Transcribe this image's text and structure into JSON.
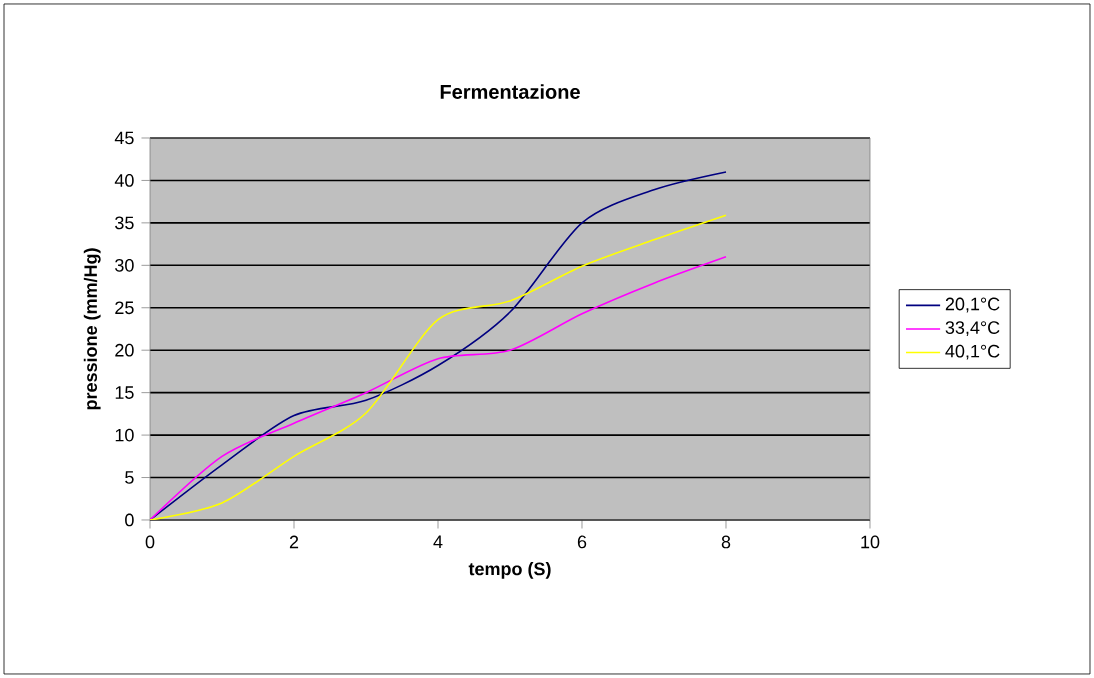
{
  "chart_data": {
    "type": "line",
    "title": "Fermentazione",
    "xlabel": "tempo (S)",
    "ylabel": "pressione (mm/Hg)",
    "x": [
      0,
      1,
      2,
      3,
      4,
      5,
      6,
      7,
      8
    ],
    "series": [
      {
        "name": "20,1°C",
        "color": "#000080",
        "values": [
          0,
          6.5,
          12.3,
          14.1,
          18.2,
          24.5,
          35,
          38.9,
          41
        ]
      },
      {
        "name": "33,4°C",
        "color": "#ff00ff",
        "values": [
          0,
          7.5,
          11.4,
          15,
          19,
          20,
          24.3,
          27.9,
          31
        ]
      },
      {
        "name": "40,1°C",
        "color": "#ffff00",
        "values": [
          0,
          2,
          7.5,
          12.6,
          23.6,
          25.8,
          29.9,
          33,
          35.9
        ]
      }
    ],
    "xlim": [
      0,
      10
    ],
    "xticks": [
      0,
      2,
      4,
      6,
      8,
      10
    ],
    "ylim": [
      0,
      45
    ],
    "yticks": [
      0,
      5,
      10,
      15,
      20,
      25,
      30,
      35,
      40,
      45
    ],
    "grid": "y",
    "legend": "right",
    "marker": "none",
    "line_style": "solid"
  }
}
